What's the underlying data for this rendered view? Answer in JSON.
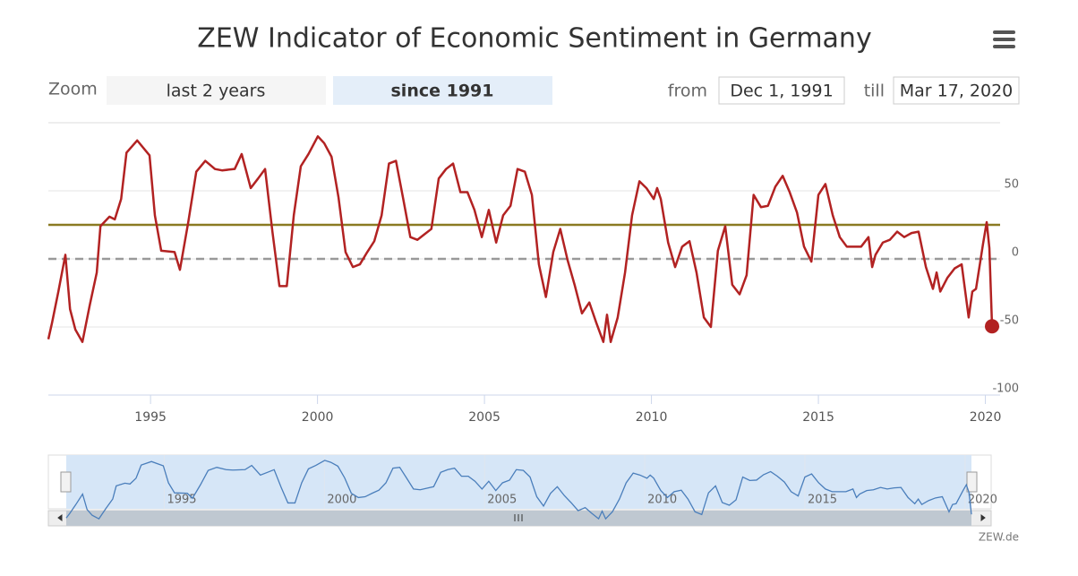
{
  "chart_data": {
    "type": "line",
    "title": "ZEW Indicator of Economic Sentiment in Germany",
    "zoom_label": "Zoom",
    "range_buttons": [
      "last 2 years",
      "since 1991"
    ],
    "from_label": "from",
    "from": "Dec 1, 1991",
    "till_label": "till",
    "till": "Mar 17, 2020",
    "credits": "ZEW.de",
    "xlim": [
      1991.94,
      2020.2
    ],
    "xticks": [
      1995,
      2000,
      2005,
      2010,
      2015,
      2020
    ],
    "ylim": [
      -100,
      100
    ],
    "yticks": [
      -100,
      -50,
      0,
      50
    ],
    "grid": true,
    "plot_lines": [
      {
        "value": 25,
        "color": "#8a7a22",
        "dashed": false
      },
      {
        "value": 0,
        "color": "#999999",
        "dashed": true
      }
    ],
    "navigator_color": "#4a7ebb",
    "series": [
      {
        "color": "#b22222",
        "x": [
          1991.94,
          1992.05,
          1992.24,
          1992.45,
          1992.59,
          1992.75,
          1992.96,
          1993.18,
          1993.39,
          1993.5,
          1993.77,
          1993.93,
          1994.12,
          1994.28,
          1994.6,
          1994.97,
          1995.13,
          1995.32,
          1995.72,
          1995.88,
          1996.13,
          1996.37,
          1996.64,
          1996.93,
          1997.14,
          1997.52,
          1997.73,
          1998,
          1998.22,
          1998.43,
          1998.65,
          1998.86,
          1999.08,
          1999.29,
          1999.5,
          1999.73,
          2000.01,
          2000.2,
          2000.42,
          2000.63,
          2000.84,
          2001.06,
          2001.27,
          2001.49,
          2001.7,
          2001.92,
          2002.14,
          2002.35,
          2002.56,
          2002.78,
          2002.99,
          2003.2,
          2003.41,
          2003.63,
          2003.85,
          2004.06,
          2004.28,
          2004.49,
          2004.7,
          2004.92,
          2005.13,
          2005.35,
          2005.56,
          2005.78,
          2005.99,
          2006.21,
          2006.42,
          2006.63,
          2006.84,
          2007.06,
          2007.27,
          2007.49,
          2007.71,
          2007.92,
          2008.14,
          2008.35,
          2008.56,
          2008.67,
          2008.78,
          2008.99,
          2009.21,
          2009.42,
          2009.64,
          2009.85,
          2010.07,
          2010.17,
          2010.28,
          2010.5,
          2010.71,
          2010.92,
          2011.14,
          2011.35,
          2011.57,
          2011.78,
          2011.99,
          2012.21,
          2012.42,
          2012.64,
          2012.85,
          2013.06,
          2013.28,
          2013.49,
          2013.71,
          2013.93,
          2014.14,
          2014.36,
          2014.57,
          2014.79,
          2015,
          2015.21,
          2015.43,
          2015.64,
          2015.85,
          2016.07,
          2016.28,
          2016.5,
          2016.61,
          2016.71,
          2016.93,
          2017.14,
          2017.36,
          2017.57,
          2017.79,
          2018,
          2018.22,
          2018.43,
          2018.54,
          2018.65,
          2018.86,
          2019.08,
          2019.29,
          2019.5,
          2019.61,
          2019.72,
          2019.93,
          2020.04,
          2020.12,
          2020.2
        ],
        "values": [
          -59,
          -47,
          -24,
          3,
          -37,
          -52,
          -61,
          -34,
          -10,
          24,
          31,
          29,
          44,
          78,
          87,
          76,
          32,
          6,
          5,
          -8,
          27,
          64,
          72,
          66,
          65,
          66,
          77,
          52,
          59,
          66,
          20,
          -20,
          -20,
          32,
          68,
          77,
          90,
          85,
          75,
          45,
          5,
          -6,
          -4,
          5,
          13,
          32,
          70,
          72,
          45,
          16,
          14,
          18,
          22,
          59,
          66,
          70,
          49,
          49,
          36,
          16,
          36,
          12,
          32,
          39,
          66,
          64,
          47,
          -4,
          -28,
          5,
          22,
          -1,
          -20,
          -40,
          -32,
          -47,
          -61,
          -41,
          -61,
          -43,
          -10,
          32,
          57,
          52,
          44,
          52,
          44,
          12,
          -6,
          9,
          13,
          -10,
          -43,
          -50,
          6,
          24,
          -19,
          -26,
          -12,
          47,
          38,
          39,
          53,
          61,
          49,
          34,
          9,
          -2,
          47,
          55,
          32,
          16,
          9,
          9,
          9,
          16,
          -6,
          3,
          12,
          14,
          20,
          16,
          19,
          20,
          -6,
          -22,
          -10,
          -24,
          -14,
          -7,
          -4,
          -43,
          -24,
          -22,
          11,
          27,
          8,
          -49.5
        ]
      }
    ]
  }
}
